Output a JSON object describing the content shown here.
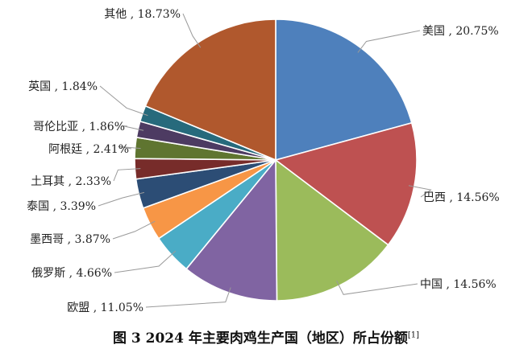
{
  "chart_data": {
    "type": "pie",
    "title": "",
    "slices": [
      {
        "label": "美国",
        "value": 20.75,
        "display": "美国 , 20.75%",
        "color": "#4E80BC"
      },
      {
        "label": "巴西",
        "value": 14.56,
        "display": "巴西 , 14.56%",
        "color": "#BE5151"
      },
      {
        "label": "中国",
        "value": 14.56,
        "display": "中国 , 14.56%",
        "color": "#9BBB5B"
      },
      {
        "label": "欧盟",
        "value": 11.05,
        "display": "欧盟 , 11.05%",
        "color": "#8064A2"
      },
      {
        "label": "俄罗斯",
        "value": 4.66,
        "display": "俄罗斯 , 4.66%",
        "color": "#4AACC6"
      },
      {
        "label": "墨西哥",
        "value": 3.87,
        "display": "墨西哥 , 3.87%",
        "color": "#F79646"
      },
      {
        "label": "泰国",
        "value": 3.39,
        "display": "泰国 , 3.39%",
        "color": "#2C4D75"
      },
      {
        "label": "土耳其",
        "value": 2.33,
        "display": "土耳其 , 2.33%",
        "color": "#772C2A"
      },
      {
        "label": "阿根廷",
        "value": 2.41,
        "display": "阿根廷 , 2.41%",
        "color": "#5F7530"
      },
      {
        "label": "哥伦比亚",
        "value": 1.86,
        "display": "哥伦比亚 , 1.86%",
        "color": "#4D3B62"
      },
      {
        "label": "英国",
        "value": 1.84,
        "display": "英国 , 1.84%",
        "color": "#276A7C"
      },
      {
        "label": "其他",
        "value": 18.73,
        "display": "其他 , 18.73%",
        "color": "#B0582D"
      }
    ]
  },
  "caption": {
    "text": "图 3  2024 年主要肉鸡生产国（地区）所占份额",
    "ref": "[1]"
  }
}
